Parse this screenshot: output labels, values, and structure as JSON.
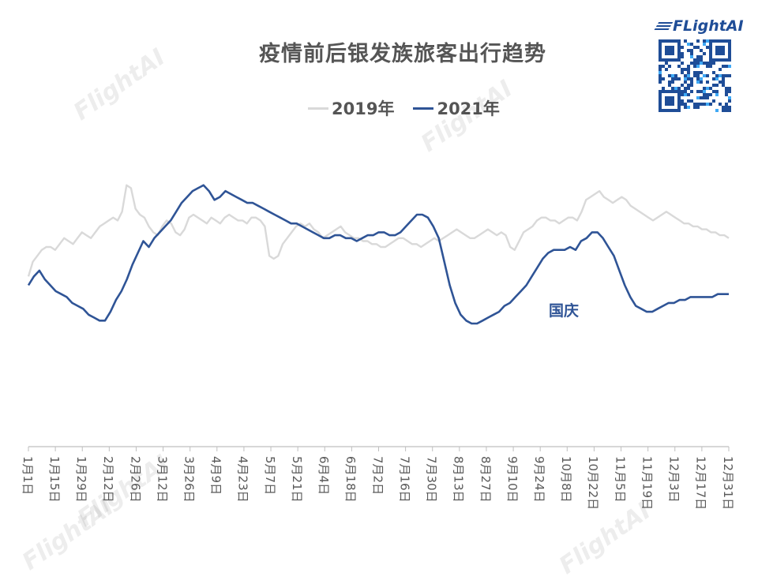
{
  "chart_data": {
    "type": "line",
    "title": "疫情前后银发族旅客出行趋势",
    "xlabel": "",
    "ylabel": "",
    "x_ticks": [
      "1月1日",
      "1月15日",
      "1月29日",
      "2月12日",
      "2月26日",
      "3月12日",
      "3月26日",
      "4月9日",
      "4月23日",
      "5月7日",
      "5月21日",
      "6月4日",
      "6月18日",
      "7月2日",
      "7月16日",
      "7月30日",
      "8月13日",
      "8月27日",
      "9月10日",
      "9月24日",
      "10月8日",
      "10月22日",
      "11月5日",
      "11月19日",
      "12月3日",
      "12月17日",
      "12月31日"
    ],
    "y_axis_visible": false,
    "ylim": [
      0,
      100
    ],
    "legend_position": "top",
    "grid": false,
    "annotation": "国庆",
    "series": [
      {
        "name": "2019年",
        "color": "#d9d9d9",
        "values": [
          53,
          58,
          60,
          62,
          63,
          63,
          62,
          64,
          66,
          65,
          64,
          66,
          68,
          67,
          66,
          68,
          70,
          71,
          72,
          73,
          72,
          75,
          84,
          83,
          76,
          74,
          73,
          70,
          68,
          67,
          70,
          72,
          71,
          68,
          67,
          69,
          73,
          74,
          73,
          72,
          71,
          73,
          72,
          71,
          73,
          74,
          73,
          72,
          72,
          71,
          73,
          73,
          72,
          70,
          60,
          59,
          60,
          64,
          66,
          68,
          70,
          71,
          70,
          71,
          69,
          68,
          66,
          67,
          68,
          69,
          70,
          68,
          67,
          66,
          66,
          65,
          65,
          64,
          64,
          63,
          63,
          64,
          65,
          66,
          66,
          65,
          64,
          64,
          63,
          64,
          65,
          66,
          65,
          66,
          67,
          68,
          69,
          68,
          67,
          66,
          66,
          67,
          68,
          69,
          68,
          67,
          68,
          67,
          63,
          62,
          65,
          68,
          69,
          70,
          72,
          73,
          73,
          72,
          72,
          71,
          72,
          73,
          73,
          72,
          75,
          79,
          80,
          81,
          82,
          80,
          79,
          78,
          79,
          80,
          79,
          77,
          76,
          75,
          74,
          73,
          72,
          73,
          74,
          75,
          74,
          73,
          72,
          71,
          71,
          70,
          70,
          69,
          69,
          68,
          68,
          67,
          67,
          66
        ]
      },
      {
        "name": "2021年",
        "color": "#2f5496",
        "values": [
          50,
          53,
          55,
          52,
          50,
          48,
          47,
          46,
          44,
          43,
          42,
          40,
          39,
          38,
          38,
          41,
          45,
          48,
          52,
          57,
          61,
          65,
          63,
          66,
          68,
          70,
          72,
          75,
          78,
          80,
          82,
          83,
          84,
          82,
          79,
          80,
          82,
          81,
          80,
          79,
          78,
          78,
          77,
          76,
          75,
          74,
          73,
          72,
          71,
          71,
          70,
          69,
          68,
          67,
          66,
          66,
          67,
          67,
          66,
          66,
          65,
          66,
          67,
          67,
          68,
          68,
          67,
          67,
          68,
          70,
          72,
          74,
          74,
          73,
          70,
          66,
          58,
          50,
          44,
          40,
          38,
          37,
          37,
          38,
          39,
          40,
          41,
          43,
          44,
          46,
          48,
          50,
          53,
          56,
          59,
          61,
          62,
          62,
          62,
          63,
          62,
          65,
          66,
          68,
          68,
          66,
          63,
          60,
          55,
          50,
          46,
          43,
          42,
          41,
          41,
          42,
          43,
          44,
          44,
          45,
          45,
          46,
          46,
          46,
          46,
          46,
          47,
          47,
          47
        ]
      }
    ]
  },
  "watermark": "FlightAI",
  "logo_text": "FLightAI"
}
